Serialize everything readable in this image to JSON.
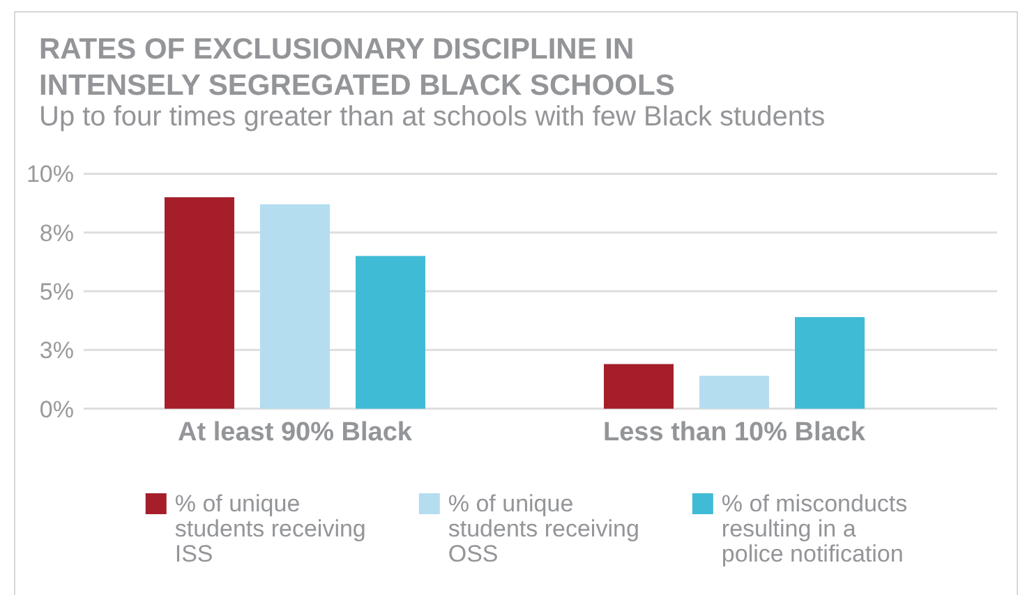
{
  "chart_data": {
    "type": "bar",
    "title": "RATES OF EXCLUSIONARY DISCIPLINE IN INTENSELY SEGREGATED BLACK SCHOOLS",
    "subtitle": "Up to four times greater than at schools with few Black students",
    "categories": [
      "At least 90% Black",
      "Less than 10% Black"
    ],
    "series": [
      {
        "name": "% of unique students receiving ISS",
        "color": "#a51e2a",
        "values": [
          9.0,
          1.9
        ]
      },
      {
        "name": "% of unique students receiving OSS",
        "color": "#b4ddf0",
        "values": [
          8.7,
          1.4
        ]
      },
      {
        "name": "% of misconducts resulting in a police notification",
        "color": "#40bbd5",
        "values": [
          6.5,
          3.9
        ]
      }
    ],
    "ylim": [
      0,
      10
    ],
    "yticks": [
      {
        "value": 0,
        "label": "0%"
      },
      {
        "value": 2.5,
        "label": "3%"
      },
      {
        "value": 5,
        "label": "5%"
      },
      {
        "value": 7.5,
        "label": "8%"
      },
      {
        "value": 10,
        "label": "10%"
      }
    ],
    "grid": "y",
    "legend": "bottom"
  }
}
